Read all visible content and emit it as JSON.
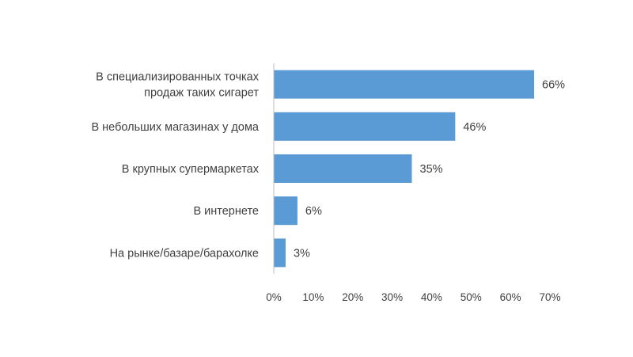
{
  "chart_data": {
    "type": "bar",
    "orientation": "horizontal",
    "title": "",
    "xlabel": "",
    "ylabel": "",
    "categories": [
      [
        "В специализированных точках",
        "продаж таких сигарет"
      ],
      [
        "В небольших магазинах у дома"
      ],
      [
        "В крупных супермаркетах"
      ],
      [
        "В интернете"
      ],
      [
        "На рынке/базаре/барахолке"
      ]
    ],
    "values": [
      66,
      46,
      35,
      6,
      3
    ],
    "value_labels": [
      "66%",
      "46%",
      "35%",
      "6%",
      "3%"
    ],
    "xlim": [
      0,
      70
    ],
    "ticks": [
      0,
      10,
      20,
      30,
      40,
      50,
      60,
      70
    ],
    "tick_labels": [
      "0%",
      "10%",
      "20%",
      "30%",
      "40%",
      "50%",
      "60%",
      "70%"
    ],
    "grid": false,
    "legend": "none",
    "colors": {
      "bar": "#5B9BD5",
      "axis": "#BFBFBF",
      "text": "#404040"
    }
  }
}
